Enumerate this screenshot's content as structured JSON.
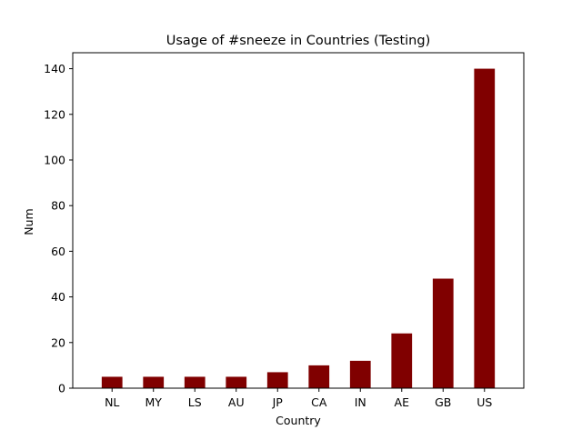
{
  "chart_data": {
    "type": "bar",
    "title": "Usage of #sneeze in Countries (Testing)",
    "xlabel": "Country",
    "ylabel": "Num",
    "categories": [
      "NL",
      "MY",
      "LS",
      "AU",
      "JP",
      "CA",
      "IN",
      "AE",
      "GB",
      "US"
    ],
    "values": [
      5,
      5,
      5,
      5,
      7,
      10,
      12,
      24,
      48,
      140
    ],
    "ylim": [
      0,
      147
    ],
    "yticks": [
      0,
      20,
      40,
      60,
      80,
      100,
      120,
      140
    ],
    "bar_color": "#800000",
    "grid": false,
    "legend": "none"
  }
}
